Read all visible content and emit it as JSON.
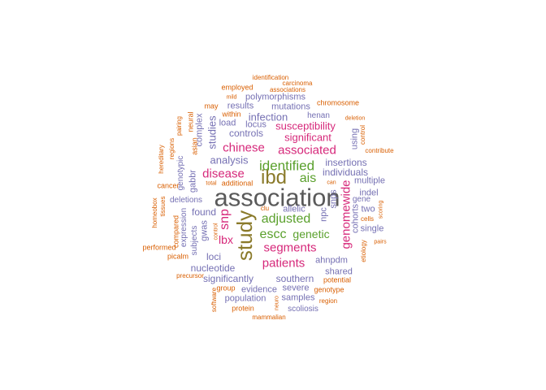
{
  "palette": {
    "gray": "#5a5a5a",
    "olive": "#8a7a2a",
    "green": "#5aa02c",
    "magenta": "#d6287a",
    "purple": "#7570b3",
    "orange": "#d95f02"
  },
  "words": [
    {
      "text": "association",
      "color": "gray"
    },
    {
      "text": "study",
      "color": "olive"
    },
    {
      "text": "ibd",
      "color": "olive"
    },
    {
      "text": "identified",
      "color": "green"
    },
    {
      "text": "ais",
      "color": "green"
    },
    {
      "text": "adjusted",
      "color": "green"
    },
    {
      "text": "escc",
      "color": "green"
    },
    {
      "text": "genetic",
      "color": "green"
    },
    {
      "text": "associated",
      "color": "magenta"
    },
    {
      "text": "chinese",
      "color": "magenta"
    },
    {
      "text": "disease",
      "color": "magenta"
    },
    {
      "text": "snp",
      "color": "magenta"
    },
    {
      "text": "patients",
      "color": "magenta"
    },
    {
      "text": "segments",
      "color": "magenta"
    },
    {
      "text": "genomewide",
      "color": "magenta"
    },
    {
      "text": "susceptibility",
      "color": "magenta"
    },
    {
      "text": "significant",
      "color": "magenta"
    },
    {
      "text": "lbx",
      "color": "magenta"
    },
    {
      "text": "analysis",
      "color": "purple"
    },
    {
      "text": "insertions",
      "color": "purple"
    },
    {
      "text": "individuals",
      "color": "purple"
    },
    {
      "text": "infection",
      "color": "purple"
    },
    {
      "text": "controls",
      "color": "purple"
    },
    {
      "text": "studies",
      "color": "purple"
    },
    {
      "text": "loci",
      "color": "purple"
    },
    {
      "text": "nucleotide",
      "color": "purple"
    },
    {
      "text": "significantly",
      "color": "purple"
    },
    {
      "text": "southern",
      "color": "purple"
    },
    {
      "text": "found",
      "color": "purple"
    },
    {
      "text": "mutations",
      "color": "purple"
    },
    {
      "text": "polymorphisms",
      "color": "purple"
    },
    {
      "text": "results",
      "color": "purple"
    },
    {
      "text": "load",
      "color": "purple"
    },
    {
      "text": "locus",
      "color": "purple"
    },
    {
      "text": "henan",
      "color": "purple"
    },
    {
      "text": "complex",
      "color": "purple"
    },
    {
      "text": "gabbr",
      "color": "purple"
    },
    {
      "text": "gwas",
      "color": "purple"
    },
    {
      "text": "deletions",
      "color": "purple"
    },
    {
      "text": "allelic",
      "color": "purple"
    },
    {
      "text": "npc",
      "color": "purple"
    },
    {
      "text": "snps",
      "color": "purple"
    },
    {
      "text": "multiple",
      "color": "purple"
    },
    {
      "text": "indel",
      "color": "purple"
    },
    {
      "text": "two",
      "color": "purple"
    },
    {
      "text": "single",
      "color": "purple"
    },
    {
      "text": "using",
      "color": "purple"
    },
    {
      "text": "cohorts",
      "color": "purple"
    },
    {
      "text": "ahnpdm",
      "color": "purple"
    },
    {
      "text": "shared",
      "color": "purple"
    },
    {
      "text": "evidence",
      "color": "purple"
    },
    {
      "text": "severe",
      "color": "purple"
    },
    {
      "text": "population",
      "color": "purple"
    },
    {
      "text": "samples",
      "color": "purple"
    },
    {
      "text": "scoliosis",
      "color": "purple"
    },
    {
      "text": "subjects",
      "color": "purple"
    },
    {
      "text": "expression",
      "color": "purple"
    },
    {
      "text": "genotypic",
      "color": "purple"
    },
    {
      "text": "gene",
      "color": "purple"
    },
    {
      "text": "chromosome",
      "color": "orange"
    },
    {
      "text": "employed",
      "color": "orange"
    },
    {
      "text": "mild",
      "color": "orange"
    },
    {
      "text": "may",
      "color": "orange"
    },
    {
      "text": "neural",
      "color": "orange"
    },
    {
      "text": "asian",
      "color": "orange"
    },
    {
      "text": "pairing",
      "color": "orange"
    },
    {
      "text": "regions",
      "color": "orange"
    },
    {
      "text": "hereditary",
      "color": "orange"
    },
    {
      "text": "cancer",
      "color": "orange"
    },
    {
      "text": "homeobox",
      "color": "orange"
    },
    {
      "text": "tissues",
      "color": "orange"
    },
    {
      "text": "performed",
      "color": "orange"
    },
    {
      "text": "compared",
      "color": "orange"
    },
    {
      "text": "picalm",
      "color": "orange"
    },
    {
      "text": "precursor",
      "color": "orange"
    },
    {
      "text": "group",
      "color": "orange"
    },
    {
      "text": "software",
      "color": "orange"
    },
    {
      "text": "protein",
      "color": "orange"
    },
    {
      "text": "mammalian",
      "color": "orange"
    },
    {
      "text": "region",
      "color": "orange"
    },
    {
      "text": "genotype",
      "color": "orange"
    },
    {
      "text": "potential",
      "color": "orange"
    },
    {
      "text": "etiology",
      "color": "orange"
    },
    {
      "text": "pairs",
      "color": "orange"
    },
    {
      "text": "scoring",
      "color": "orange"
    },
    {
      "text": "cells",
      "color": "orange"
    },
    {
      "text": "contribute",
      "color": "orange"
    },
    {
      "text": "control",
      "color": "orange"
    },
    {
      "text": "deletion",
      "color": "orange"
    },
    {
      "text": "identification",
      "color": "orange"
    },
    {
      "text": "carcinoma",
      "color": "orange"
    },
    {
      "text": "associations",
      "color": "orange"
    },
    {
      "text": "within",
      "color": "orange"
    },
    {
      "text": "additional",
      "color": "orange"
    },
    {
      "text": "total",
      "color": "orange"
    },
    {
      "text": "clu",
      "color": "orange"
    },
    {
      "text": "can",
      "color": "orange"
    },
    {
      "text": "neuro",
      "color": "orange"
    },
    {
      "text": "control",
      "color": "orange"
    }
  ]
}
